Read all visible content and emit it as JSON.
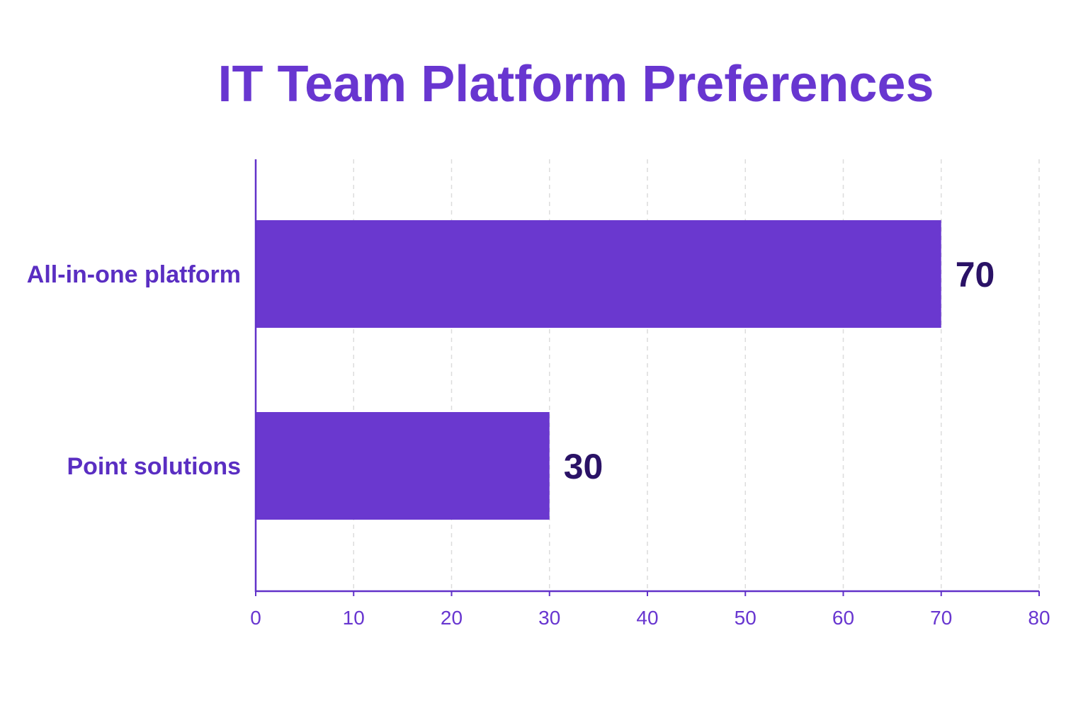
{
  "colors": {
    "title": "#6836d0",
    "bar": "#6a38cf",
    "axis": "#6232c9",
    "category_label": "#5a2ec2",
    "tick_label": "#6836d0",
    "data_label": "#2a1266",
    "grid": "#dcdcdc"
  },
  "chart_data": {
    "type": "bar",
    "orientation": "horizontal",
    "title": "IT Team Platform Preferences",
    "xlabel": "",
    "ylabel": "",
    "categories": [
      "All-in-one platform",
      "Point solutions"
    ],
    "values": [
      70,
      30
    ],
    "data_labels": [
      "70",
      "30"
    ],
    "xlim": [
      0,
      80
    ],
    "xticks": [
      0,
      10,
      20,
      30,
      40,
      50,
      60,
      70,
      80
    ],
    "grid": "vertical dashed",
    "legend": "none"
  }
}
